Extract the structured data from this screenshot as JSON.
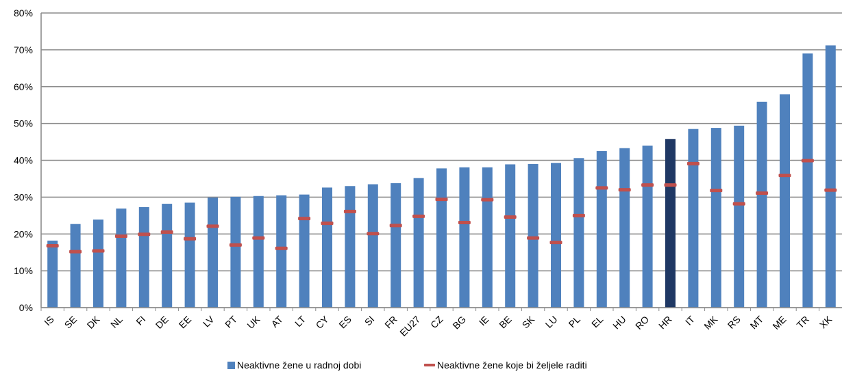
{
  "chart_data": {
    "type": "bar",
    "categories": [
      "IS",
      "SE",
      "DK",
      "NL",
      "FI",
      "DE",
      "EE",
      "LV",
      "PT",
      "UK",
      "AT",
      "LT",
      "CY",
      "ES",
      "SI",
      "FR",
      "EU27",
      "CZ",
      "BG",
      "IE",
      "BE",
      "SK",
      "LU",
      "PL",
      "EL",
      "HU",
      "RO",
      "HR",
      "IT",
      "MK",
      "RS",
      "MT",
      "ME",
      "TR",
      "XK"
    ],
    "series": [
      {
        "name": "Neaktivne žene u radnoj dobi",
        "kind": "bar",
        "color": "#4f81bd",
        "highlight_category": "HR",
        "highlight_color": "#1f3864",
        "values": [
          18.2,
          22.7,
          23.9,
          26.9,
          27.3,
          28.2,
          28.5,
          29.9,
          30.1,
          30.3,
          30.5,
          30.7,
          32.6,
          33.0,
          33.5,
          33.8,
          35.2,
          37.8,
          38.1,
          38.1,
          38.9,
          39.0,
          39.3,
          40.6,
          42.5,
          43.3,
          44.0,
          45.8,
          48.5,
          48.8,
          49.4,
          55.9,
          57.9,
          69.0,
          71.2
        ]
      },
      {
        "name": "Neaktivne žene koje bi željele raditi",
        "kind": "marker",
        "color": "#c0504d",
        "values": [
          16.8,
          15.2,
          15.4,
          19.4,
          19.9,
          20.5,
          18.7,
          22.1,
          17.0,
          18.9,
          16.1,
          24.2,
          22.9,
          26.1,
          20.1,
          22.3,
          24.8,
          29.4,
          23.1,
          29.3,
          24.6,
          18.9,
          17.7,
          25.0,
          32.5,
          32.0,
          33.3,
          33.3,
          39.1,
          31.8,
          28.2,
          31.1,
          35.9,
          39.9,
          31.9
        ]
      }
    ],
    "ylim": [
      0,
      80
    ],
    "y_ticks": [
      "0%",
      "10%",
      "20%",
      "30%",
      "40%",
      "50%",
      "60%",
      "70%",
      "80%"
    ],
    "y_tick_values": [
      0,
      10,
      20,
      30,
      40,
      50,
      60,
      70,
      80
    ],
    "grid": true,
    "legend_position": "bottom",
    "title": "",
    "xlabel": "",
    "ylabel": ""
  }
}
